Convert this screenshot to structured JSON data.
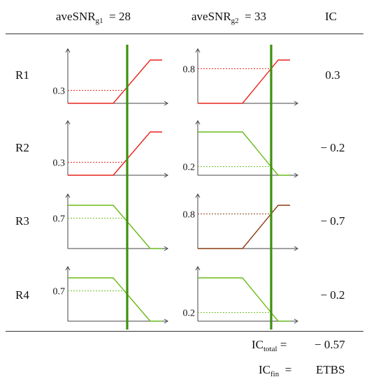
{
  "header": {
    "col1": {
      "label": "aveSNR",
      "sub": "g1",
      "value": "= 28"
    },
    "col2": {
      "label": "aveSNR",
      "sub": "g2",
      "value": "= 33"
    },
    "col3": "IC"
  },
  "colors": {
    "red": "#e8241c",
    "green": "#6aba1a",
    "brown": "#8b3a12",
    "marker": "#3f8f10",
    "axis": "#444444"
  },
  "rows": [
    {
      "label": "R1",
      "ic": "0.3",
      "g1": {
        "shape": "rising",
        "color": "red",
        "level_label": "0.3",
        "level": 0.3
      },
      "g2": {
        "shape": "rising",
        "color": "red",
        "level_label": "0.8",
        "level": 0.8
      }
    },
    {
      "label": "R2",
      "ic": "− 0.2",
      "g1": {
        "shape": "rising",
        "color": "red",
        "level_label": "0.3",
        "level": 0.3
      },
      "g2": {
        "shape": "falling",
        "color": "green",
        "level_label": "0.2",
        "level": 0.2
      }
    },
    {
      "label": "R3",
      "ic": "− 0.7",
      "g1": {
        "shape": "falling",
        "color": "green",
        "level_label": "0.7",
        "level": 0.7
      },
      "g2": {
        "shape": "rising",
        "color": "brown",
        "level_label": "0.8",
        "level": 0.8
      }
    },
    {
      "label": "R4",
      "ic": "− 0.2",
      "g1": {
        "shape": "falling",
        "color": "green",
        "level_label": "0.7",
        "level": 0.7
      },
      "g2": {
        "shape": "falling",
        "color": "green",
        "level_label": "0.2",
        "level": 0.2
      }
    }
  ],
  "footer": {
    "total": {
      "label": "IC",
      "sub": "total",
      "eq": "=",
      "value": "− 0.57"
    },
    "fin": {
      "label": "IC",
      "sub": "fin",
      "eq": "=",
      "value": "ETBS"
    }
  }
}
